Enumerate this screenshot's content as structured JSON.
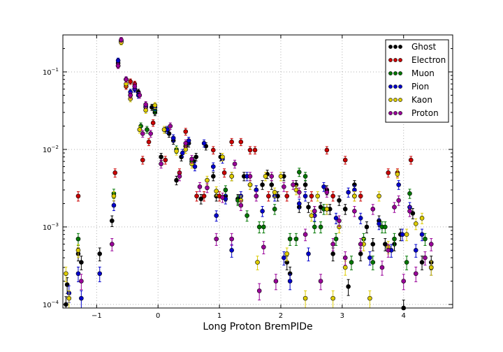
{
  "chart_data": {
    "type": "scatter",
    "title": "",
    "xlabel": "Long Proton BremPIDe",
    "ylabel": "",
    "xlim": [
      -1.55,
      4.8
    ],
    "ylim": [
      9e-05,
      0.3
    ],
    "y_scale": "log",
    "grid": true,
    "legend_position": "top-right",
    "x_ticks": [
      {
        "value": -1,
        "label": "−1"
      },
      {
        "value": 0,
        "label": "0"
      },
      {
        "value": 1,
        "label": "1"
      },
      {
        "value": 2,
        "label": "2"
      },
      {
        "value": 3,
        "label": "3"
      },
      {
        "value": 4,
        "label": "4"
      }
    ],
    "y_ticks": [
      {
        "value": 0.0001,
        "base": "10",
        "exp": "−4"
      },
      {
        "value": 0.001,
        "base": "10",
        "exp": "−3"
      },
      {
        "value": 0.01,
        "base": "10",
        "exp": "−2"
      },
      {
        "value": 0.1,
        "base": "10",
        "exp": "−1"
      }
    ],
    "series": [
      {
        "name": "Ghost",
        "color": "#000000",
        "points": [
          [
            -1.5,
            0.0001
          ],
          [
            -1.48,
            0.00018
          ],
          [
            -1.3,
            0.00045
          ],
          [
            -1.25,
            0.00035
          ],
          [
            -0.95,
            0.00045
          ],
          [
            -0.75,
            0.0012
          ],
          [
            -0.6,
            0.25
          ],
          [
            -0.65,
            0.13
          ],
          [
            -0.52,
            0.08
          ],
          [
            -0.45,
            0.05
          ],
          [
            -0.38,
            0.06
          ],
          [
            -0.32,
            0.055
          ],
          [
            -0.2,
            0.035
          ],
          [
            -0.1,
            0.035
          ],
          [
            -0.05,
            0.03
          ],
          [
            0.05,
            0.008
          ],
          [
            0.12,
            0.018
          ],
          [
            0.18,
            0.016
          ],
          [
            0.25,
            0.013
          ],
          [
            0.3,
            0.004
          ],
          [
            0.38,
            0.008
          ],
          [
            0.45,
            0.011
          ],
          [
            0.5,
            0.012
          ],
          [
            0.58,
            0.007
          ],
          [
            0.62,
            0.008
          ],
          [
            0.7,
            0.0023
          ],
          [
            0.78,
            0.011
          ],
          [
            0.9,
            0.0045
          ],
          [
            0.95,
            0.0025
          ],
          [
            1.02,
            0.008
          ],
          [
            1.1,
            0.0025
          ],
          [
            1.2,
            0.0045
          ],
          [
            1.3,
            0.0023
          ],
          [
            1.4,
            0.0045
          ],
          [
            1.5,
            0.0035
          ],
          [
            1.6,
            0.003
          ],
          [
            1.7,
            0.0035
          ],
          [
            1.78,
            0.0048
          ],
          [
            1.85,
            0.0035
          ],
          [
            1.95,
            0.0025
          ],
          [
            2.05,
            0.0045
          ],
          [
            2.1,
            0.00035
          ],
          [
            2.15,
            0.00025
          ],
          [
            2.25,
            0.0035
          ],
          [
            2.3,
            0.0018
          ],
          [
            2.4,
            0.0035
          ],
          [
            2.45,
            0.0018
          ],
          [
            2.55,
            0.0016
          ],
          [
            2.65,
            0.0018
          ],
          [
            2.75,
            0.003
          ],
          [
            2.8,
            0.0017
          ],
          [
            2.85,
            0.00045
          ],
          [
            2.95,
            0.0022
          ],
          [
            3.05,
            0.0017
          ],
          [
            3.1,
            0.00017
          ],
          [
            3.2,
            0.0035
          ],
          [
            3.3,
            0.00045
          ],
          [
            3.4,
            0.001
          ],
          [
            3.5,
            0.0006
          ],
          [
            3.6,
            0.0012
          ],
          [
            3.7,
            0.0006
          ],
          [
            3.85,
            0.0006
          ],
          [
            3.95,
            0.0008
          ],
          [
            4.0,
            9e-05
          ],
          [
            4.15,
            0.0015
          ],
          [
            4.3,
            0.00035
          ],
          [
            4.45,
            0.00035
          ]
        ]
      },
      {
        "name": "Electron",
        "color": "#cc0000",
        "points": [
          [
            -1.3,
            0.0025
          ],
          [
            -0.7,
            0.005
          ],
          [
            -0.6,
            0.25
          ],
          [
            -0.65,
            0.12
          ],
          [
            -0.52,
            0.065
          ],
          [
            -0.45,
            0.075
          ],
          [
            -0.38,
            0.07
          ],
          [
            -0.25,
            0.0073
          ],
          [
            -0.15,
            0.0125
          ],
          [
            -0.08,
            0.022
          ],
          [
            0.12,
            0.0073
          ],
          [
            0.35,
            0.005
          ],
          [
            0.45,
            0.017
          ],
          [
            0.63,
            0.0025
          ],
          [
            0.75,
            0.0025
          ],
          [
            0.9,
            0.0098
          ],
          [
            1.0,
            0.0025
          ],
          [
            1.08,
            0.005
          ],
          [
            1.2,
            0.0125
          ],
          [
            1.35,
            0.0125
          ],
          [
            1.5,
            0.0098
          ],
          [
            1.58,
            0.0098
          ],
          [
            1.8,
            0.0025
          ],
          [
            2.1,
            0.0025
          ],
          [
            2.5,
            0.0025
          ],
          [
            2.75,
            0.0098
          ],
          [
            2.85,
            0.0025
          ],
          [
            3.05,
            0.0073
          ],
          [
            3.2,
            0.0025
          ],
          [
            3.3,
            0.0025
          ],
          [
            3.75,
            0.005
          ],
          [
            3.9,
            0.005
          ],
          [
            4.12,
            0.0073
          ]
        ]
      },
      {
        "name": "Muon",
        "color": "#007700",
        "points": [
          [
            -1.3,
            0.0007
          ],
          [
            -0.72,
            0.0027
          ],
          [
            -0.28,
            0.02
          ],
          [
            -0.18,
            0.018
          ],
          [
            -0.05,
            0.032
          ],
          [
            0.15,
            0.018
          ],
          [
            0.3,
            0.01
          ],
          [
            0.55,
            0.007
          ],
          [
            1.1,
            0.003
          ],
          [
            1.3,
            0.0022
          ],
          [
            1.45,
            0.0014
          ],
          [
            1.65,
            0.001
          ],
          [
            1.72,
            0.001
          ],
          [
            1.9,
            0.0017
          ],
          [
            2.15,
            0.0007
          ],
          [
            2.25,
            0.0007
          ],
          [
            2.4,
            0.0045
          ],
          [
            2.3,
            0.0051
          ],
          [
            2.55,
            0.001
          ],
          [
            2.65,
            0.001
          ],
          [
            2.7,
            0.0017
          ],
          [
            2.9,
            0.0007
          ],
          [
            3.15,
            0.00035
          ],
          [
            3.35,
            0.0007
          ],
          [
            3.5,
            0.00035
          ],
          [
            3.65,
            0.001
          ],
          [
            3.7,
            0.001
          ],
          [
            3.85,
            0.0007
          ],
          [
            4.05,
            0.00035
          ],
          [
            4.1,
            0.0027
          ],
          [
            4.35,
            0.0007
          ]
        ]
      },
      {
        "name": "Pion",
        "color": "#0000cc",
        "points": [
          [
            -1.45,
            0.00014
          ],
          [
            -1.3,
            0.00025
          ],
          [
            -1.25,
            0.00012
          ],
          [
            -0.95,
            0.00025
          ],
          [
            -0.72,
            0.0019
          ],
          [
            -0.6,
            0.25
          ],
          [
            -0.65,
            0.14
          ],
          [
            -0.52,
            0.08
          ],
          [
            -0.45,
            0.055
          ],
          [
            -0.38,
            0.06
          ],
          [
            -0.32,
            0.05
          ],
          [
            -0.2,
            0.036
          ],
          [
            -0.05,
            0.035
          ],
          [
            0.15,
            0.018
          ],
          [
            0.25,
            0.014
          ],
          [
            0.4,
            0.009
          ],
          [
            0.5,
            0.013
          ],
          [
            0.6,
            0.006
          ],
          [
            0.75,
            0.012
          ],
          [
            0.9,
            0.006
          ],
          [
            0.95,
            0.0014
          ],
          [
            1.05,
            0.0075
          ],
          [
            1.1,
            0.0023
          ],
          [
            1.2,
            0.0005
          ],
          [
            1.35,
            0.0025
          ],
          [
            1.45,
            0.0045
          ],
          [
            1.6,
            0.003
          ],
          [
            1.7,
            0.0016
          ],
          [
            1.9,
            0.0025
          ],
          [
            2.05,
            0.0004
          ],
          [
            2.15,
            0.0002
          ],
          [
            2.3,
            0.002
          ],
          [
            2.4,
            0.0025
          ],
          [
            2.45,
            0.00045
          ],
          [
            2.55,
            0.0014
          ],
          [
            2.7,
            0.0033
          ],
          [
            2.75,
            0.0017
          ],
          [
            2.9,
            0.0013
          ],
          [
            3.1,
            0.0028
          ],
          [
            3.2,
            0.003
          ],
          [
            3.3,
            0.0013
          ],
          [
            3.45,
            0.0004
          ],
          [
            3.6,
            0.0011
          ],
          [
            3.8,
            0.0005
          ],
          [
            3.92,
            0.0035
          ],
          [
            3.98,
            0.0008
          ],
          [
            4.1,
            0.0018
          ],
          [
            4.2,
            0.0005
          ],
          [
            4.3,
            0.0008
          ],
          [
            4.45,
            0.0003
          ]
        ]
      },
      {
        "name": "Kaon",
        "color": "#ddcc00",
        "points": [
          [
            -1.5,
            0.00025
          ],
          [
            -1.45,
            0.00012
          ],
          [
            -1.3,
            0.0005
          ],
          [
            -0.72,
            0.0025
          ],
          [
            -0.6,
            0.24
          ],
          [
            -0.52,
            0.07
          ],
          [
            -0.45,
            0.045
          ],
          [
            -0.3,
            0.018
          ],
          [
            -0.2,
            0.032
          ],
          [
            -0.05,
            0.037
          ],
          [
            0.1,
            0.018
          ],
          [
            0.3,
            0.0095
          ],
          [
            0.45,
            0.01
          ],
          [
            0.55,
            0.0065
          ],
          [
            0.8,
            0.004
          ],
          [
            0.95,
            0.0029
          ],
          [
            1.05,
            0.008
          ],
          [
            1.2,
            0.0045
          ],
          [
            1.35,
            0.0022
          ],
          [
            1.5,
            0.0035
          ],
          [
            1.62,
            0.00035
          ],
          [
            1.75,
            0.0045
          ],
          [
            1.9,
            0.0028
          ],
          [
            2.0,
            0.0045
          ],
          [
            2.1,
            0.00045
          ],
          [
            2.25,
            0.003
          ],
          [
            2.4,
            0.00012
          ],
          [
            2.5,
            0.0014
          ],
          [
            2.6,
            0.0025
          ],
          [
            2.75,
            0.0017
          ],
          [
            2.85,
            0.00012
          ],
          [
            2.95,
            0.001
          ],
          [
            3.05,
            0.0003
          ],
          [
            3.2,
            0.0025
          ],
          [
            3.35,
            0.0006
          ],
          [
            3.45,
            0.00012
          ],
          [
            3.6,
            0.0025
          ],
          [
            3.75,
            0.00055
          ],
          [
            3.9,
            0.0048
          ],
          [
            4.05,
            0.0008
          ],
          [
            4.2,
            0.0011
          ],
          [
            4.3,
            0.0013
          ],
          [
            4.45,
            0.0003
          ]
        ]
      },
      {
        "name": "Proton",
        "color": "#990099",
        "points": [
          [
            -1.25,
            0.0002
          ],
          [
            -0.75,
            0.0006
          ],
          [
            -0.6,
            0.26
          ],
          [
            -0.65,
            0.12
          ],
          [
            -0.52,
            0.08
          ],
          [
            -0.45,
            0.05
          ],
          [
            -0.38,
            0.065
          ],
          [
            -0.3,
            0.05
          ],
          [
            -0.25,
            0.016
          ],
          [
            -0.2,
            0.038
          ],
          [
            -0.12,
            0.016
          ],
          [
            0.05,
            0.0065
          ],
          [
            0.2,
            0.02
          ],
          [
            0.35,
            0.0045
          ],
          [
            0.45,
            0.012
          ],
          [
            0.55,
            0.0075
          ],
          [
            0.68,
            0.0033
          ],
          [
            0.8,
            0.0032
          ],
          [
            0.95,
            0.0007
          ],
          [
            1.05,
            0.0024
          ],
          [
            1.2,
            0.0007
          ],
          [
            1.25,
            0.0065
          ],
          [
            1.35,
            0.0019
          ],
          [
            1.5,
            0.0045
          ],
          [
            1.6,
            0.0025
          ],
          [
            1.65,
            0.00015
          ],
          [
            1.72,
            0.00055
          ],
          [
            1.85,
            0.0045
          ],
          [
            1.92,
            0.0002
          ],
          [
            2.05,
            0.0033
          ],
          [
            2.2,
            0.0035
          ],
          [
            2.3,
            0.0028
          ],
          [
            2.4,
            0.0008
          ],
          [
            2.55,
            0.0016
          ],
          [
            2.65,
            0.0002
          ],
          [
            2.75,
            0.0028
          ],
          [
            2.85,
            0.0006
          ],
          [
            2.95,
            0.0012
          ],
          [
            3.05,
            0.0004
          ],
          [
            3.2,
            0.0016
          ],
          [
            3.3,
            0.0006
          ],
          [
            3.5,
            0.0017
          ],
          [
            3.65,
            0.0003
          ],
          [
            3.75,
            0.0005
          ],
          [
            3.85,
            0.0018
          ],
          [
            3.92,
            0.0022
          ],
          [
            4.0,
            0.0002
          ],
          [
            4.1,
            0.0016
          ],
          [
            4.2,
            0.00025
          ],
          [
            4.35,
            0.0004
          ],
          [
            4.45,
            0.0006
          ]
        ]
      }
    ]
  }
}
